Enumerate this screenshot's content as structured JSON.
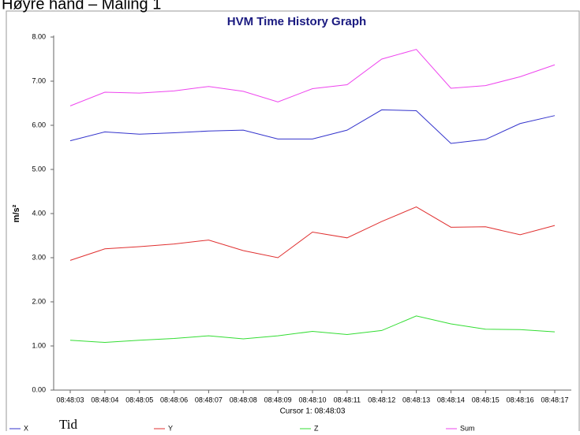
{
  "header": "Høyre hånd – Måling 1",
  "footer_label": "Tid",
  "chart_data": {
    "type": "line",
    "title": "HVM Time History Graph",
    "y_label": "m/s²",
    "x_label": "Cursor 1: 08:48:03",
    "categories": [
      "08:48:03",
      "08:48:04",
      "08:48:05",
      "08:48:06",
      "08:48:07",
      "08:48:08",
      "08:48:09",
      "08:48:10",
      "08:48:11",
      "08:48:12",
      "08:48:13",
      "08:48:14",
      "08:48:15",
      "08:48:16",
      "08:48:17"
    ],
    "series": [
      {
        "name": "X",
        "color": "#3333cc",
        "values": [
          5.65,
          5.85,
          5.8,
          5.83,
          5.87,
          5.89,
          5.69,
          5.69,
          5.89,
          6.35,
          6.33,
          5.59,
          5.68,
          6.04,
          6.22
        ]
      },
      {
        "name": "Y",
        "color": "#e03030",
        "values": [
          2.94,
          3.2,
          3.25,
          3.31,
          3.4,
          3.16,
          3.0,
          3.58,
          3.45,
          3.82,
          4.15,
          3.69,
          3.7,
          3.52,
          3.73
        ]
      },
      {
        "name": "Z",
        "color": "#33dd33",
        "values": [
          1.13,
          1.08,
          1.13,
          1.17,
          1.23,
          1.16,
          1.23,
          1.33,
          1.26,
          1.35,
          1.68,
          1.5,
          1.38,
          1.37,
          1.32
        ]
      },
      {
        "name": "Sum",
        "color": "#ee44ee",
        "values": [
          6.44,
          6.75,
          6.73,
          6.78,
          6.88,
          6.77,
          6.53,
          6.83,
          6.92,
          7.5,
          7.72,
          6.84,
          6.9,
          7.1,
          7.37
        ]
      }
    ],
    "ylim": [
      0,
      8
    ],
    "yticks": [
      {
        "value": 0,
        "label": "0.00"
      },
      {
        "value": 1,
        "label": "1.00"
      },
      {
        "value": 2,
        "label": "2.00"
      },
      {
        "value": 3,
        "label": "3.00"
      },
      {
        "value": 4,
        "label": "4.00"
      },
      {
        "value": 5,
        "label": "5.00"
      },
      {
        "value": 6,
        "label": "6.00"
      },
      {
        "value": 7,
        "label": "7.00"
      },
      {
        "value": 8,
        "label": "8.00"
      }
    ],
    "grid": false,
    "legend": "bottom"
  }
}
